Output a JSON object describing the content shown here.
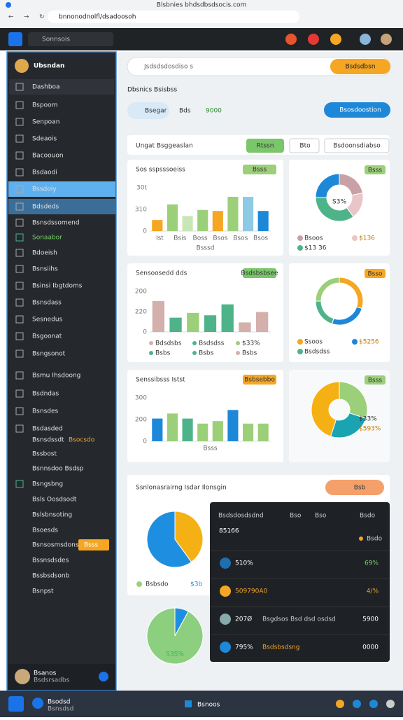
{
  "browser": {
    "tab": "Blsbnies bhdsdbsdsocis.com",
    "url": "bnnonodnolfl/dsadoosoh"
  },
  "appbar": {
    "search": "Sonnsois"
  },
  "sidebar": {
    "brand": "Ubsndan",
    "items": [
      "Dashboa",
      "Bspoom",
      "Senpoan",
      "Sdeaois",
      "Bacoouon",
      "Bsdaodi",
      "Bssdoiy",
      "Bdsdeds",
      "Bsnsdssomend",
      "Sonaabor",
      "Bdoeish",
      "Bsnsiihs",
      "Bsinsi Ibgtdoms",
      "Bsnsdass",
      "Sesnedus",
      "Bsgoonat",
      "Bsngsonot",
      "Bsmu Ihsdoong",
      "Bsdndas",
      "Bsnsdes",
      "Bsdasded",
      "Bsnsdssdt",
      "Bssbost",
      "Bsnnsdoo Bsdsp",
      "Bsngsbng",
      "Bsls Oosdsodt",
      "Bslsbnsoting",
      "Bsoesds",
      "Bsnsosmsdons",
      "Bssnsdsdes",
      "Bssbsdsonb",
      "Bsnpst"
    ],
    "badge": "Bsocsdo",
    "chip": "Bsss",
    "user": {
      "name": "Bsanos",
      "sub": "Bsdsrsadbs"
    }
  },
  "header": {
    "search": "Jsdsdsdosdiso s",
    "cta": "Bsdsdbsn",
    "title": "Dbsnics Bsisbss",
    "filter": "Bsegar",
    "select1": "Bds",
    "select2": "9000",
    "button": "Bsosdoostion"
  },
  "section": {
    "title": "Ungat Bsggeaslan",
    "tag": "Rtssn",
    "button1": "Bto",
    "button2": "Bsdoonsdiabso"
  },
  "bar_panels": [
    {
      "title": "Sos sspsssoeiss",
      "tag": "Bsss",
      "ylim": [
        0,
        100
      ],
      "ytick_labels": [
        "30t",
        "310",
        "0"
      ],
      "values": [
        22,
        53,
        30,
        42,
        40,
        68,
        68,
        40
      ],
      "colors": [
        "#f5a623",
        "#9ccf7a",
        "#c9e7b5",
        "#9ccf7a",
        "#f5a623",
        "#9ccf7a",
        "#8ecae6",
        "#1e88d8"
      ],
      "xlabels": [
        "Ist",
        "Bsis",
        "Boss",
        "Bsos",
        "Bsos",
        "Bsos"
      ],
      "footer": "Bsssd"
    },
    {
      "title": "Sensoosedd dds",
      "tag": "Bsdsbsbsee",
      "ylim": [
        0,
        100
      ],
      "ytick_labels": [
        "200",
        "220",
        "0"
      ],
      "values": [
        65,
        30,
        40,
        35,
        58,
        20,
        42
      ],
      "colors": [
        "#d3b0ac",
        "#4fb38a",
        "#9ccf7a",
        "#4fb38a",
        "#4fb38a",
        "#d3b0ac",
        "#d3b0ac"
      ],
      "legend": [
        "Bdsdsbs",
        "Bsdsdss",
        "$33%",
        "Bsbs",
        "Bsbs",
        "Bsbs"
      ]
    },
    {
      "title": "Senssibsss Istst",
      "tag": "Bsbsebbo",
      "ylim": [
        0,
        100
      ],
      "ytick_labels": [
        "300",
        "200",
        "0"
      ],
      "values": [
        45,
        55,
        45,
        35,
        40,
        62,
        35,
        35
      ],
      "colors": [
        "#1e88d8",
        "#9ccf7a",
        "#4fb38a",
        "#9ccf7a",
        "#9ccf7a",
        "#1e88d8",
        "#9ccf7a",
        "#9ccf7a"
      ],
      "xlabels": [
        "Bsss"
      ]
    }
  ],
  "pie_panels": [
    {
      "tag": "Bsss",
      "center": "S3%",
      "values": [
        22,
        18,
        35,
        25
      ],
      "colors": [
        "#c9a0a6",
        "#e9c5c8",
        "#4fb38a",
        "#1e88d8"
      ],
      "legend": [
        "Bsoos",
        "$136",
        "$13 36"
      ]
    },
    {
      "tag": "Bsso",
      "values": [
        30,
        25,
        20,
        25
      ],
      "colors": [
        "#f5a623",
        "#1e88d8",
        "#4fb38a",
        "#9ccf7a"
      ],
      "legend": [
        "Ssoos",
        "$5256",
        "Bsdsdss"
      ]
    },
    {
      "tag": "Bsss",
      "values": [
        30,
        25,
        45
      ],
      "colors": [
        "#9ccf7a",
        "#1aa3b0",
        "#f5b014"
      ],
      "legend": [
        "$33%",
        "$593%"
      ]
    }
  ],
  "wide": {
    "title": "Ssnlonasrairng Isdar Ilonsgin",
    "chip": "Bsb",
    "legend": "Bsbsdo",
    "value": "$3b",
    "values": [
      40,
      60
    ],
    "colors": [
      "#f5b014",
      "#1e8fe0"
    ]
  },
  "bottom_pie": {
    "center": "S3S%",
    "values": [
      8,
      92
    ],
    "colors": [
      "#1e8fe0",
      "#8ccf7e"
    ]
  },
  "dark": {
    "header": [
      "Bsdsdosdsdnd",
      "Bso",
      "Bso",
      "Bsdo"
    ],
    "big": "85166",
    "big_sub": "Bsdo",
    "rows": [
      {
        "value": "510%",
        "right": "69%"
      },
      {
        "value": "509790A0",
        "right": "4/%"
      },
      {
        "value": "207Ø",
        "desc": "Bsgdsos Bsd dsd osdsd",
        "right": "5900"
      },
      {
        "value": "795%",
        "desc": "Bsdsbsdsng",
        "right": "0000"
      }
    ]
  },
  "taskbar": {
    "left": "Bsodsd",
    "left_sub": "Bsnsdsd",
    "center": "Bsnoos"
  }
}
